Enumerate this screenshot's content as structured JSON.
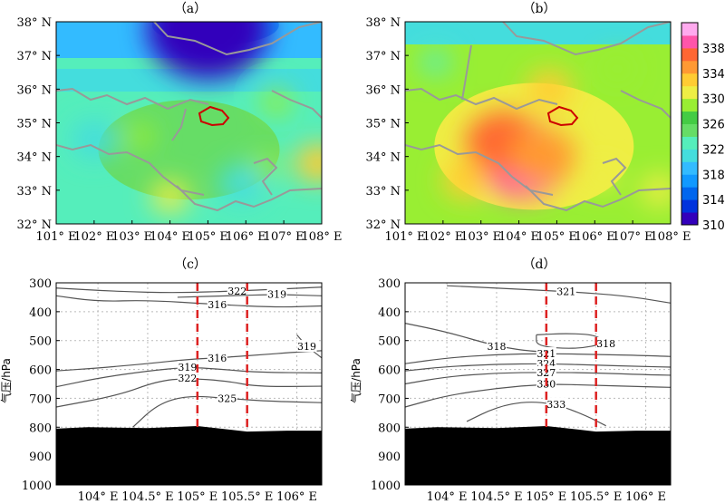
{
  "chart_data": [
    {
      "panel": "(a)",
      "type": "heatmap",
      "title": "（a）",
      "x_ticks": [
        "101° E",
        "102° E",
        "103° E",
        "104° E",
        "105° E",
        "106° E",
        "107° E",
        "108° E"
      ],
      "y_ticks": [
        "32° N",
        "33° N",
        "34° N",
        "35° N",
        "36° N",
        "37° N",
        "38° N"
      ],
      "xlim": [
        101,
        108
      ],
      "ylim": [
        32,
        38
      ],
      "region_outline": {
        "color": "#cc0000",
        "center_lon": 105.0,
        "center_lat": 35.1
      },
      "hotspots": [
        {
          "lon": 104.0,
          "lat": 32.8,
          "value": 331
        },
        {
          "lon": 103.2,
          "lat": 34.6,
          "value": 329
        },
        {
          "lon": 106.8,
          "lat": 35.6,
          "value": 328
        },
        {
          "lon": 106.5,
          "lat": 33.7,
          "value": 329
        },
        {
          "lon": 107.9,
          "lat": 33.8,
          "value": 332
        },
        {
          "lon": 102.0,
          "lat": 34.5,
          "value": 320
        },
        {
          "lon": 105.9,
          "lat": 33.2,
          "value": 320
        },
        {
          "lon": 105.0,
          "lat": 37.8,
          "value": 310
        }
      ]
    },
    {
      "panel": "(b)",
      "type": "heatmap",
      "title": "（b）",
      "x_ticks": [
        "101° E",
        "102° E",
        "103° E",
        "104° E",
        "105° E",
        "106° E",
        "107° E",
        "108° E"
      ],
      "y_ticks": [
        "32° N",
        "33° N",
        "34° N",
        "35° N",
        "36° N",
        "37° N",
        "38° N"
      ],
      "xlim": [
        101,
        108
      ],
      "ylim": [
        32,
        38
      ],
      "region_outline": {
        "color": "#cc0000",
        "center_lon": 105.0,
        "center_lat": 35.1
      },
      "hotspots": [
        {
          "lon": 104.1,
          "lat": 33.9,
          "value": 338
        },
        {
          "lon": 103.6,
          "lat": 34.4,
          "value": 336
        },
        {
          "lon": 104.6,
          "lat": 34.0,
          "value": 335
        },
        {
          "lon": 102.6,
          "lat": 33.3,
          "value": 332
        },
        {
          "lon": 104.8,
          "lat": 36.0,
          "value": 332
        },
        {
          "lon": 106.2,
          "lat": 33.4,
          "value": 330
        },
        {
          "lon": 107.7,
          "lat": 33.0,
          "value": 331
        },
        {
          "lon": 106.6,
          "lat": 36.6,
          "value": 328
        },
        {
          "lon": 101.8,
          "lat": 36.8,
          "value": 322
        }
      ]
    },
    {
      "panel": "(c)",
      "type": "line",
      "title": "（c）",
      "x_ticks": [
        "104° E",
        "104.5° E",
        "105° E",
        "105.5° E",
        "106° E"
      ],
      "y_ticks": [
        "300",
        "400",
        "500",
        "600",
        "700",
        "800",
        "900",
        "1000"
      ],
      "ylabel": "气压/hPa",
      "xlim": [
        103.58,
        106.25
      ],
      "ylim": [
        1000,
        300
      ],
      "guides": [
        105.0,
        105.5
      ],
      "terrain_pressure": [
        {
          "lon": 103.58,
          "p": 805
        },
        {
          "lon": 103.9,
          "p": 800
        },
        {
          "lon": 104.5,
          "p": 803
        },
        {
          "lon": 105.0,
          "p": 796
        },
        {
          "lon": 105.5,
          "p": 815
        },
        {
          "lon": 105.9,
          "p": 812
        },
        {
          "lon": 106.25,
          "p": 812
        }
      ],
      "contours": [
        {
          "value": 322,
          "points": [
            [
              103.58,
              318
            ],
            [
              104.2,
              330
            ],
            [
              104.8,
              335
            ],
            [
              105.4,
              328
            ],
            [
              105.8,
              322
            ],
            [
              106.25,
              315
            ]
          ]
        },
        {
          "value": 319,
          "points": [
            [
              104.8,
              350
            ],
            [
              105.3,
              345
            ],
            [
              105.8,
              340
            ],
            [
              106.25,
              345
            ]
          ]
        },
        {
          "value": 316,
          "points": [
            [
              103.58,
              345
            ],
            [
              104.0,
              365
            ],
            [
              104.5,
              360
            ],
            [
              105.2,
              375
            ],
            [
              105.8,
              385
            ],
            [
              106.25,
              380
            ]
          ]
        },
        {
          "value": 316,
          "points": [
            [
              103.58,
              605
            ],
            [
              104.0,
              595
            ],
            [
              104.5,
              580
            ],
            [
              104.9,
              565
            ],
            [
              105.2,
              560
            ],
            [
              105.6,
              550
            ],
            [
              106.0,
              540
            ],
            [
              106.25,
              535
            ]
          ]
        },
        {
          "value": 319,
          "points": [
            [
              103.58,
              660
            ],
            [
              104.0,
              630
            ],
            [
              104.5,
              605
            ],
            [
              104.9,
              592
            ],
            [
              105.2,
              598
            ],
            [
              105.6,
              610
            ],
            [
              106.25,
              612
            ]
          ]
        },
        {
          "value": 322,
          "points": [
            [
              103.58,
              730
            ],
            [
              104.2,
              690
            ],
            [
              104.6,
              640
            ],
            [
              104.9,
              630
            ],
            [
              105.3,
              640
            ],
            [
              105.6,
              660
            ],
            [
              106.25,
              658
            ]
          ]
        },
        {
          "value": 325,
          "points": [
            [
              104.35,
              800
            ],
            [
              104.6,
              720
            ],
            [
              104.9,
              690
            ],
            [
              105.3,
              700
            ],
            [
              105.7,
              710
            ],
            [
              106.25,
              715
            ]
          ]
        },
        {
          "value": 319,
          "points": [
            [
              106.0,
              480
            ],
            [
              106.1,
              520
            ],
            [
              106.25,
              560
            ]
          ]
        }
      ]
    },
    {
      "panel": "(d)",
      "type": "line",
      "title": "（d）",
      "x_ticks": [
        "104° E",
        "104.5° E",
        "105° E",
        "105.5° E",
        "106° E"
      ],
      "y_ticks": [
        "300",
        "400",
        "500",
        "600",
        "700",
        "800",
        "900",
        "1000"
      ],
      "ylabel": "气压/hPa",
      "xlim": [
        103.58,
        106.25
      ],
      "ylim": [
        1000,
        300
      ],
      "guides": [
        105.0,
        105.5
      ],
      "terrain_pressure": [
        {
          "lon": 103.58,
          "p": 805
        },
        {
          "lon": 103.9,
          "p": 800
        },
        {
          "lon": 104.5,
          "p": 803
        },
        {
          "lon": 105.0,
          "p": 796
        },
        {
          "lon": 105.5,
          "p": 815
        },
        {
          "lon": 105.9,
          "p": 812
        },
        {
          "lon": 106.25,
          "p": 812
        }
      ],
      "contours": [
        {
          "value": 321,
          "points": [
            [
              104.0,
              310
            ],
            [
              104.6,
              320
            ],
            [
              105.2,
              330
            ],
            [
              105.8,
              345
            ],
            [
              106.25,
              370
            ]
          ]
        },
        {
          "value": 318,
          "points": [
            [
              103.58,
              440
            ],
            [
              104.0,
              470
            ],
            [
              104.5,
              520
            ],
            [
              104.9,
              540
            ],
            [
              105.1,
              535
            ]
          ]
        },
        {
          "value": 318,
          "points": [
            [
              104.9,
              480
            ],
            [
              105.2,
              475
            ],
            [
              105.5,
              480
            ],
            [
              105.6,
              510
            ],
            [
              105.3,
              530
            ],
            [
              104.9,
              520
            ],
            [
              104.9,
              480
            ]
          ]
        },
        {
          "value": 321,
          "points": [
            [
              103.58,
              580
            ],
            [
              104.0,
              560
            ],
            [
              104.5,
              548
            ],
            [
              105.0,
              545
            ],
            [
              105.5,
              548
            ],
            [
              106.0,
              552
            ],
            [
              106.25,
              555
            ]
          ]
        },
        {
          "value": 324,
          "points": [
            [
              103.58,
              605
            ],
            [
              104.0,
              590
            ],
            [
              104.5,
              582
            ],
            [
              105.0,
              580
            ],
            [
              105.5,
              585
            ],
            [
              106.0,
              590
            ],
            [
              106.25,
              592
            ]
          ]
        },
        {
          "value": 327,
          "points": [
            [
              103.58,
              650
            ],
            [
              104.0,
              625
            ],
            [
              104.5,
              612
            ],
            [
              105.0,
              610
            ],
            [
              105.5,
              612
            ],
            [
              106.0,
              618
            ],
            [
              106.25,
              620
            ]
          ]
        },
        {
          "value": 330,
          "points": [
            [
              103.58,
              730
            ],
            [
              104.0,
              690
            ],
            [
              104.5,
              665
            ],
            [
              105.0,
              650
            ],
            [
              105.5,
              655
            ],
            [
              106.0,
              660
            ],
            [
              106.25,
              662
            ]
          ]
        },
        {
          "value": 333,
          "points": [
            [
              104.2,
              780
            ],
            [
              104.5,
              730
            ],
            [
              104.8,
              710
            ],
            [
              105.1,
              720
            ],
            [
              105.4,
              760
            ],
            [
              105.6,
              795
            ]
          ]
        }
      ]
    }
  ],
  "colorbar": {
    "labels": [
      "338",
      "334",
      "330",
      "326",
      "322",
      "318",
      "314",
      "310"
    ],
    "levels": [
      310,
      312,
      314,
      316,
      318,
      320,
      322,
      324,
      326,
      328,
      330,
      332,
      334,
      336,
      338,
      340
    ],
    "colors": [
      "#3300bb",
      "#0033dd",
      "#0066ee",
      "#1199ff",
      "#33bbff",
      "#44dddd",
      "#55eebb",
      "#66dd66",
      "#44cc44",
      "#99ee33",
      "#eeee44",
      "#ffcc33",
      "#ff9933",
      "#ff6633",
      "#ff55aa",
      "#ffaaee"
    ]
  }
}
